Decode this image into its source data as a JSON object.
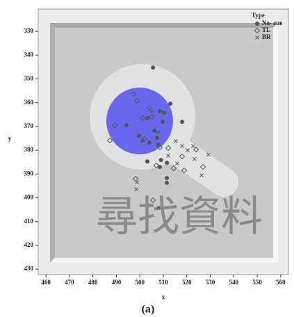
{
  "chart_data": {
    "type": "scatter",
    "x_label": "x",
    "y_label": "y",
    "caption": "(a)",
    "legend_title": "Type",
    "legend": "top-right",
    "background_text": "尋找資料",
    "xlim": [
      456.7,
      563.3
    ],
    "ylim": [
      432.3,
      320.6
    ],
    "xticks": [
      460,
      470,
      480,
      490,
      500,
      510,
      520,
      530,
      540,
      550,
      560
    ],
    "yticks": [
      330,
      340,
      350,
      360,
      370,
      380,
      390,
      400,
      410,
      420,
      430
    ],
    "series": [
      {
        "name": "No- cue",
        "color": "#555555",
        "marker": "circle",
        "x": [
          505.6,
          513,
          508.5,
          510.3,
          503.2,
          494.3,
          509.7,
          506.2,
          507.3,
          501.1,
          499.6,
          504,
          507.8,
          509,
          508.5,
          511.5,
          511.5,
          511.5,
          503.2,
          518
        ],
        "values": [
          345.2,
          360.4,
          363.6,
          364.2,
          366.5,
          369.5,
          368,
          371.8,
          374.7,
          375.9,
          373.9,
          376.8,
          377.7,
          384.1,
          387,
          385.3,
          391.7,
          393.7,
          384.7,
          368
        ]
      },
      {
        "name": "TL",
        "color": "#555555",
        "marker": "diamond",
        "x": [
          497.3,
          498.8,
          504,
          501.1,
          505,
          489.3,
          487.2,
          502,
          498.2,
          505.6,
          512.1,
          507,
          518,
          518.9,
          514.4,
          526.9,
          524,
          508.5
        ],
        "values": [
          356.3,
          359.2,
          362.2,
          366.5,
          366,
          369.5,
          375.9,
          375.3,
          392,
          401,
          379.1,
          386.4,
          382.6,
          388.5,
          387.6,
          387,
          379.7,
          378.8
        ]
      },
      {
        "name": "BR",
        "color": "#555555",
        "marker": "x",
        "x": [
          505,
          507.8,
          515.3,
          518,
          520.4,
          529.2,
          523.3,
          526.3,
          498.8,
          498.5,
          508,
          512.1,
          522.7,
          515.9
        ],
        "values": [
          363.6,
          372.4,
          376.2,
          378.2,
          380,
          381.8,
          383.6,
          390.5,
          393.5,
          396.4,
          404,
          382.3,
          378.2,
          385.6
        ]
      }
    ]
  }
}
